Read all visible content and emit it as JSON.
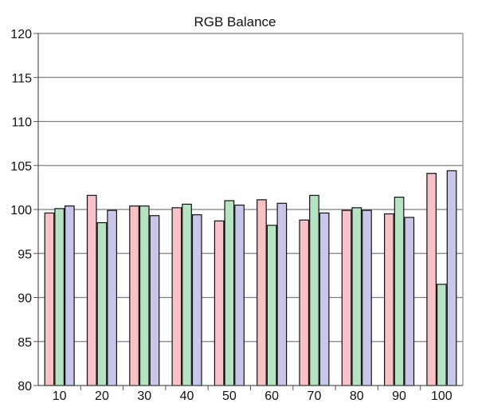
{
  "chart_data": {
    "type": "bar",
    "title": "RGB Balance",
    "xlabel": "",
    "ylabel": "",
    "categories": [
      "10",
      "20",
      "30",
      "40",
      "50",
      "60",
      "70",
      "80",
      "90",
      "100"
    ],
    "ylim": [
      80,
      120
    ],
    "yticks": [
      80,
      85,
      90,
      95,
      100,
      105,
      110,
      115,
      120
    ],
    "grid": "horizontal",
    "legend": "none",
    "series": [
      {
        "color": "#f7c1c7",
        "values": [
          99.6,
          101.6,
          100.4,
          100.2,
          98.7,
          101.1,
          98.8,
          99.9,
          99.5,
          104.1
        ]
      },
      {
        "color": "#b6e3c2",
        "values": [
          100.1,
          98.5,
          100.4,
          100.6,
          101.0,
          98.2,
          101.6,
          100.2,
          101.4,
          91.5
        ]
      },
      {
        "color": "#c8c6ea",
        "values": [
          100.4,
          99.9,
          99.3,
          99.4,
          100.5,
          100.7,
          99.6,
          99.9,
          99.1,
          104.4
        ]
      }
    ]
  }
}
